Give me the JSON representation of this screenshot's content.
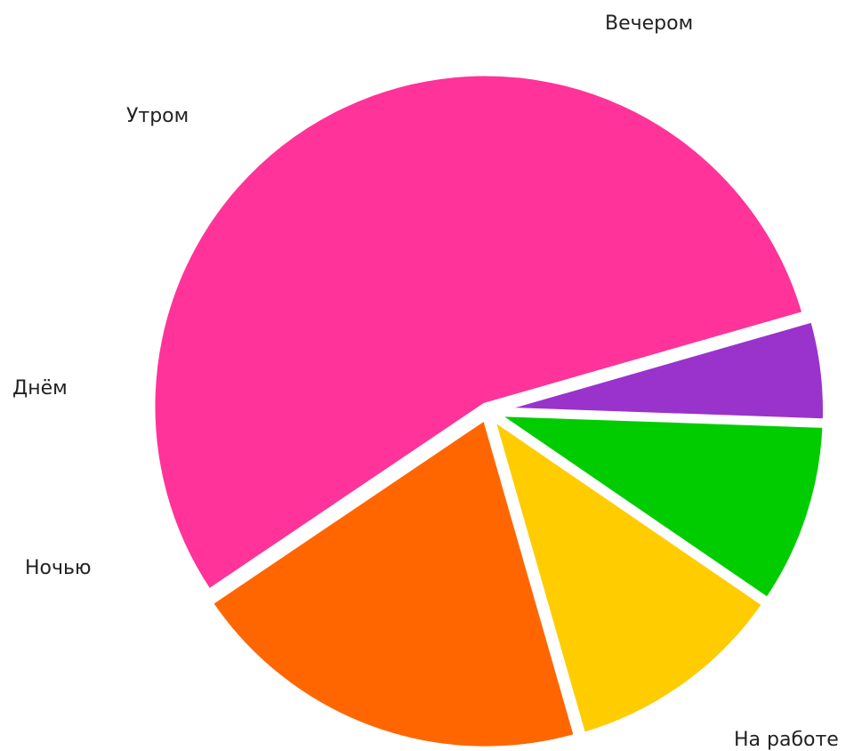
{
  "chart_data": {
    "type": "pie",
    "title": "",
    "legend": "none",
    "start_angle_deg": 16,
    "direction": "counterclockwise",
    "slices": [
      {
        "label": "На работе",
        "value": 55,
        "color": "#FF3399"
      },
      {
        "label": "Вечером",
        "value": 20,
        "color": "#FF6600"
      },
      {
        "label": "Утром",
        "value": 11,
        "color": "#FFCC00"
      },
      {
        "label": "Днём",
        "value": 9,
        "color": "#00CC00"
      },
      {
        "label": "Ночью",
        "value": 5,
        "color": "#9933CC"
      }
    ]
  }
}
